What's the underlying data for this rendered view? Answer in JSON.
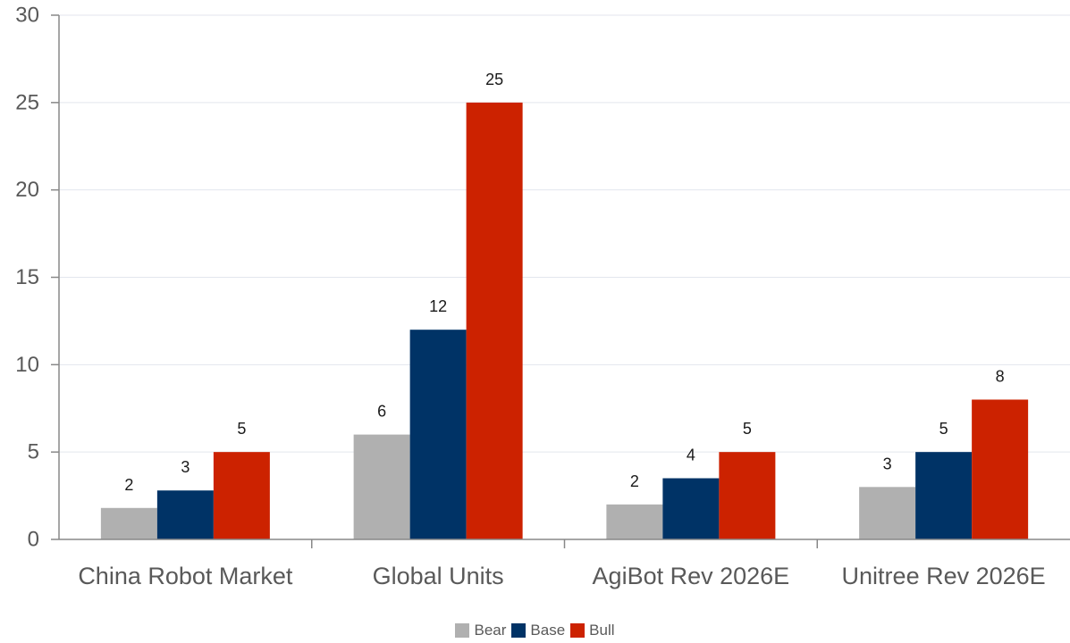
{
  "chart_data": {
    "type": "bar",
    "categories": [
      "China Robot Market",
      "Global Units",
      "AgiBot Rev 2026E",
      "Unitree Rev 2026E"
    ],
    "series": [
      {
        "name": "Bear",
        "color": "#b0b0b0",
        "values": [
          1.8,
          6,
          2,
          3
        ],
        "labels": [
          "2",
          "6",
          "2",
          "3"
        ]
      },
      {
        "name": "Base",
        "color": "#003366",
        "values": [
          2.8,
          12,
          3.5,
          5
        ],
        "labels": [
          "3",
          "12",
          "4",
          "5"
        ]
      },
      {
        "name": "Bull",
        "color": "#cc2200",
        "values": [
          5,
          25,
          5,
          8
        ],
        "labels": [
          "5",
          "25",
          "5",
          "8"
        ]
      }
    ],
    "ylim": [
      0,
      30
    ],
    "yticks": [
      0,
      5,
      10,
      15,
      20,
      25,
      30
    ],
    "grid": true,
    "legend_position": "bottom-center"
  }
}
